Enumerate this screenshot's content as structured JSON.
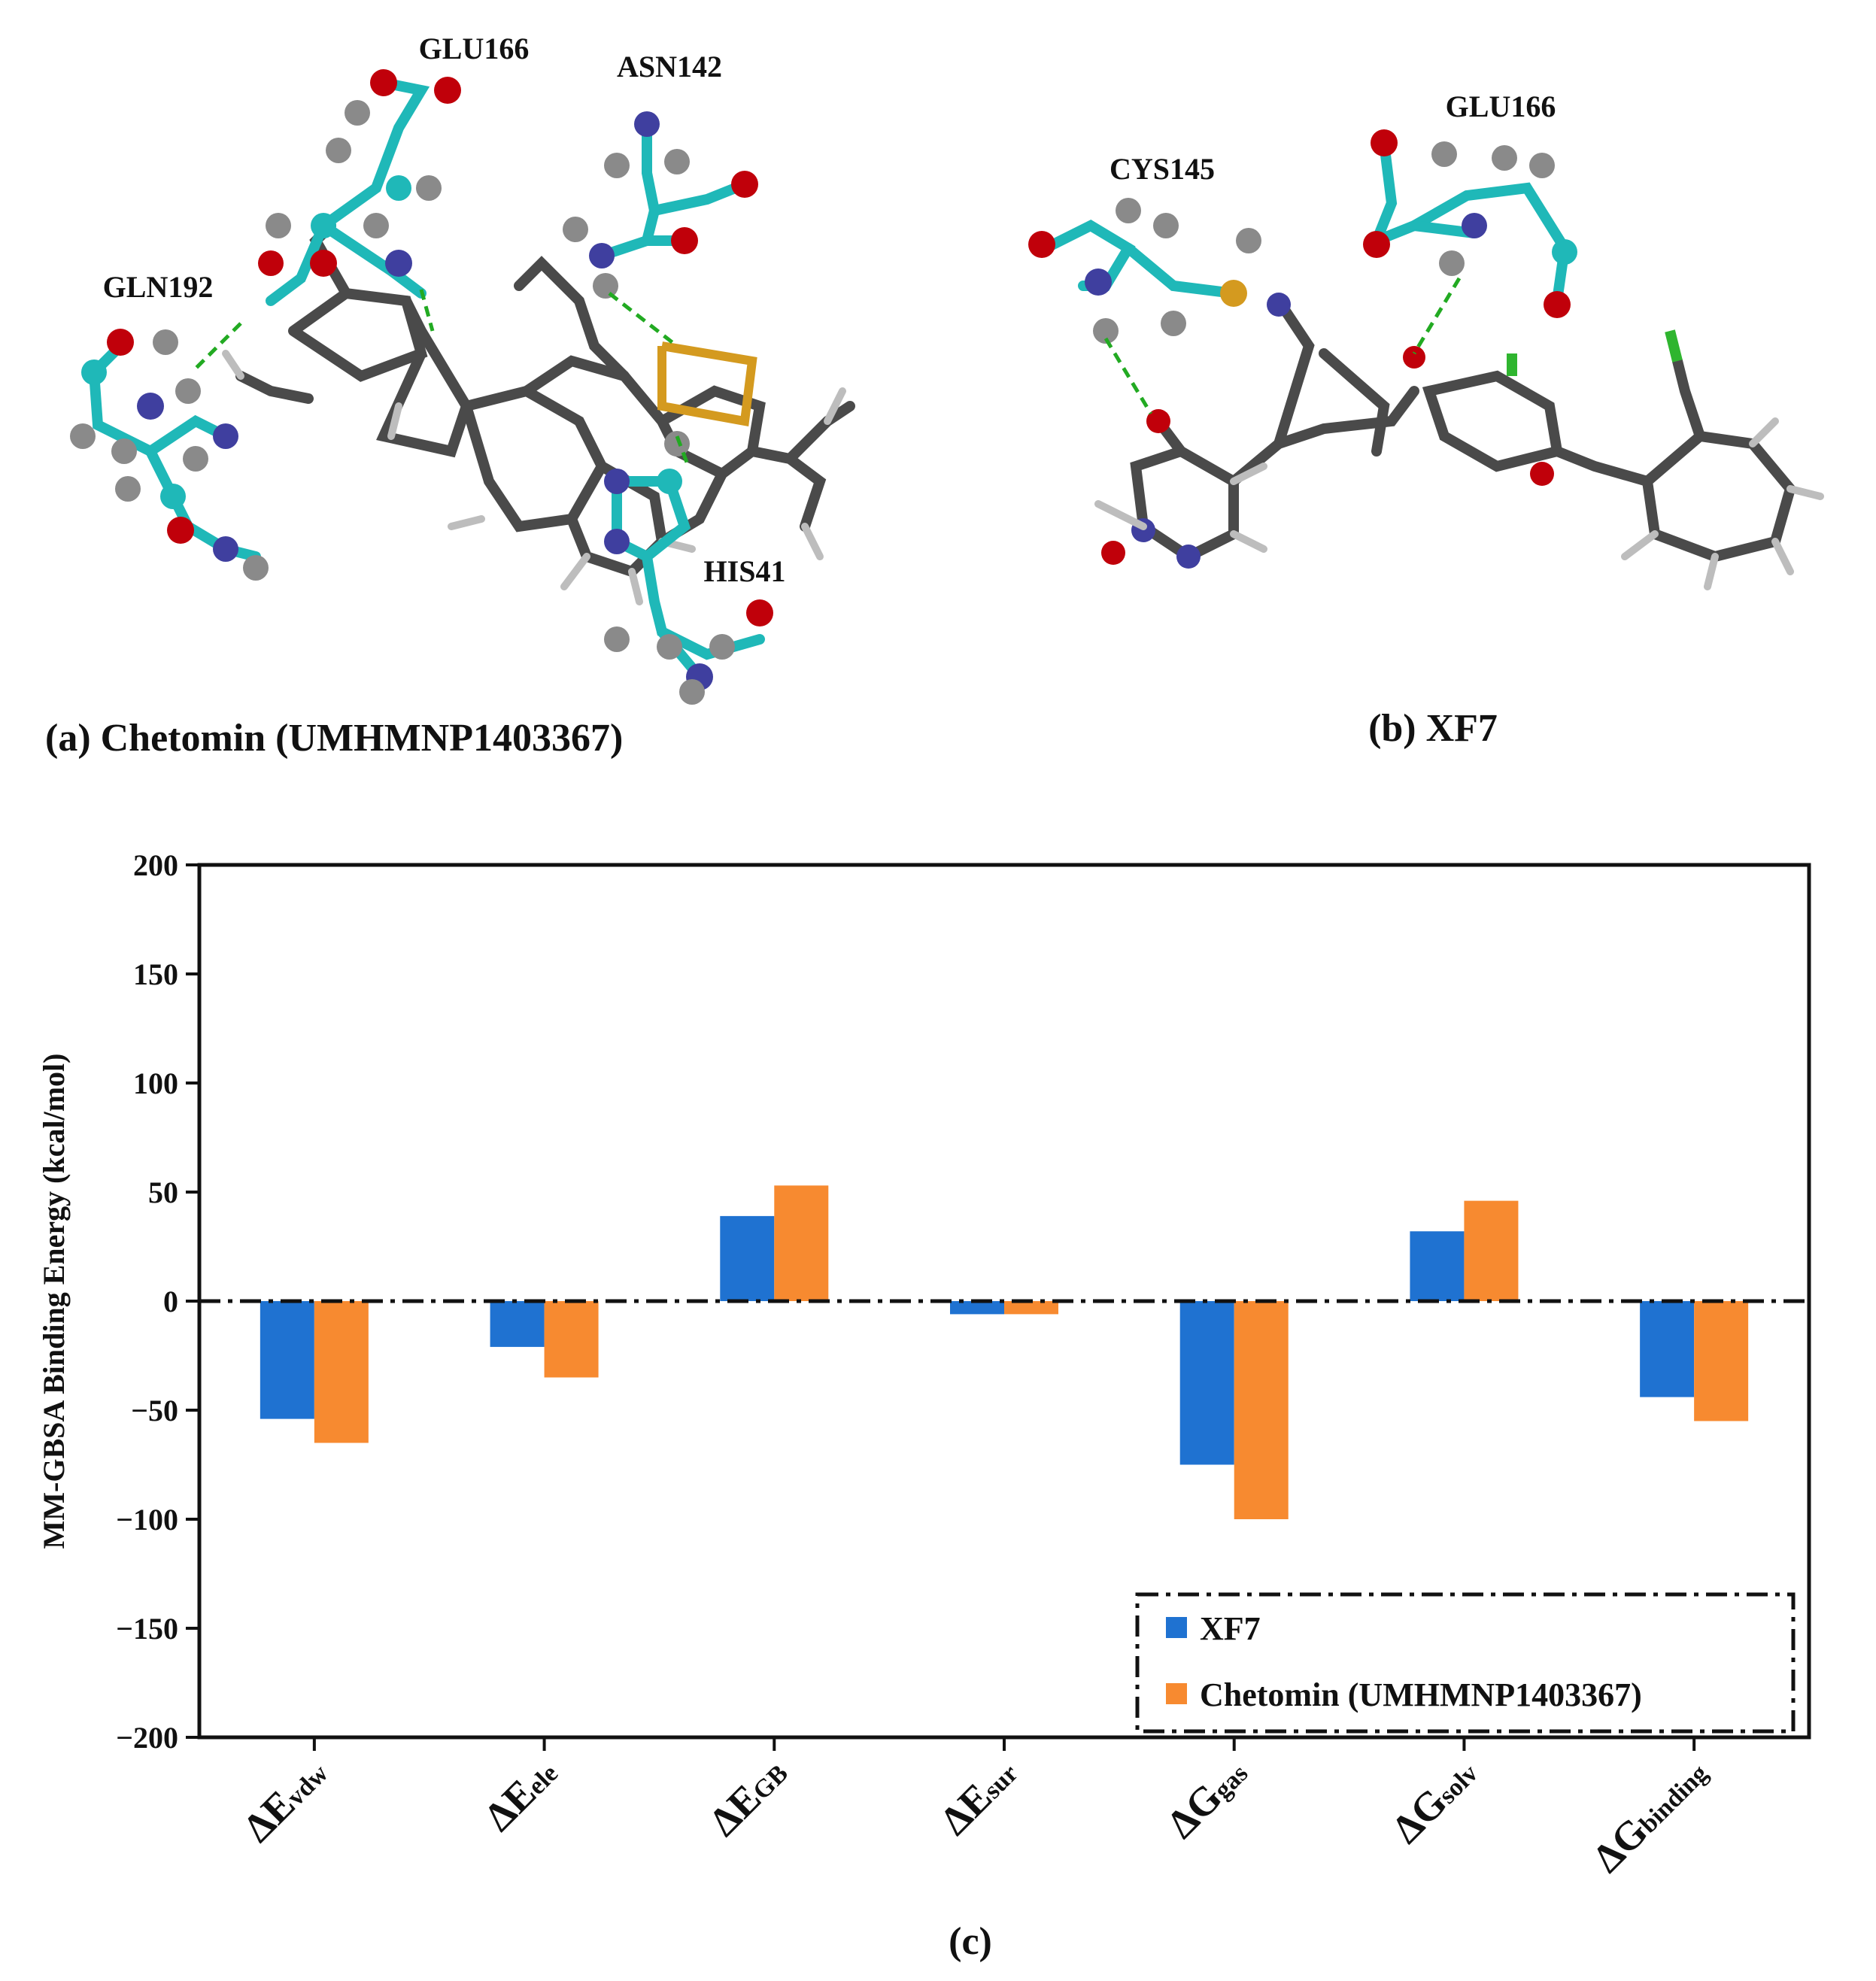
{
  "panel_a": {
    "caption": "(a) Chetomin (UMHMNP1403367)",
    "residues": [
      "GLU166",
      "ASN142",
      "GLN192",
      "HIS41"
    ]
  },
  "panel_b": {
    "caption": "(b) XF7",
    "residues": [
      "CYS145",
      "GLU166"
    ]
  },
  "panel_c_caption": "(c)",
  "colors": {
    "xf7": "#1f72d1",
    "chetomin": "#f78a30",
    "carbon_residue": "#1fb8b8",
    "oxygen": "#c0000a",
    "nitrogen": "#3f3f9f",
    "hydrogen": "#8a8a8a",
    "sulfur": "#d49a1f",
    "ligand": "#4a4a4a",
    "hbond": "#22aa22",
    "chlorine": "#2fb52f"
  },
  "chart_data": {
    "type": "bar",
    "title": "",
    "xlabel": "",
    "ylabel": "MM-GBSA Binding  Energy  (kcal/mol)",
    "ylim": [
      -200,
      200
    ],
    "yticks": [
      "200",
      "150",
      "100",
      "50",
      "0",
      "−50",
      "−100",
      "−150",
      "−200"
    ],
    "ytick_values": [
      200,
      150,
      100,
      50,
      0,
      -50,
      -100,
      -150,
      -200
    ],
    "categories": [
      {
        "main": "ΔE",
        "sub": "vdw"
      },
      {
        "main": "ΔE",
        "sub": "ele"
      },
      {
        "main": "ΔE",
        "sub": "GB"
      },
      {
        "main": "ΔE",
        "sub": "sur"
      },
      {
        "main": "ΔG",
        "sub": "gas"
      },
      {
        "main": "ΔG",
        "sub": "solv"
      },
      {
        "main": "ΔG",
        "sub": "binding"
      }
    ],
    "series": [
      {
        "name": "XF7",
        "values": [
          -54,
          -21,
          39,
          -6,
          -75,
          32,
          -44
        ]
      },
      {
        "name": "Chetomin (UMHMNP1403367)",
        "values": [
          -65,
          -35,
          53,
          -6,
          -100,
          46,
          -55
        ]
      }
    ],
    "legend_position": "bottom-right",
    "zero_line": "dash-dot"
  }
}
